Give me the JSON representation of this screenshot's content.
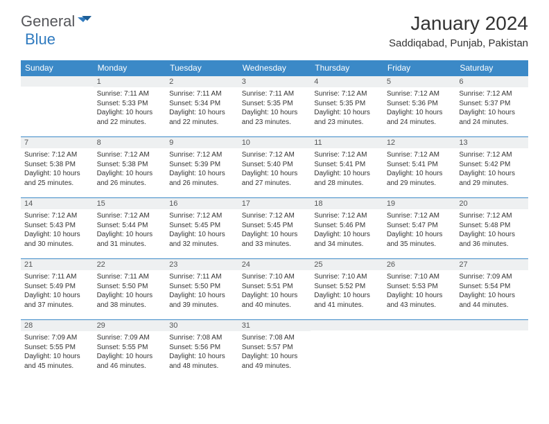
{
  "logo": {
    "text1": "General",
    "text2": "Blue"
  },
  "title": "January 2024",
  "location": "Saddiqabad, Punjab, Pakistan",
  "colors": {
    "header_bg": "#3b89c7",
    "header_text": "#ffffff",
    "daynum_bg": "#eef0f1",
    "daynum_text": "#545556",
    "border": "#3b89c7",
    "body_text": "#333333",
    "logo_gray": "#55565a",
    "logo_blue": "#2f7abf",
    "page_bg": "#ffffff"
  },
  "fonts": {
    "title_size": 28,
    "location_size": 15,
    "header_size": 12,
    "daynum_size": 11,
    "daytext_size": 10
  },
  "weekdays": [
    "Sunday",
    "Monday",
    "Tuesday",
    "Wednesday",
    "Thursday",
    "Friday",
    "Saturday"
  ],
  "weeks": [
    [
      {
        "n": "",
        "sr": "",
        "ss": "",
        "dl": ""
      },
      {
        "n": "1",
        "sr": "Sunrise: 7:11 AM",
        "ss": "Sunset: 5:33 PM",
        "dl": "Daylight: 10 hours and 22 minutes."
      },
      {
        "n": "2",
        "sr": "Sunrise: 7:11 AM",
        "ss": "Sunset: 5:34 PM",
        "dl": "Daylight: 10 hours and 22 minutes."
      },
      {
        "n": "3",
        "sr": "Sunrise: 7:11 AM",
        "ss": "Sunset: 5:35 PM",
        "dl": "Daylight: 10 hours and 23 minutes."
      },
      {
        "n": "4",
        "sr": "Sunrise: 7:12 AM",
        "ss": "Sunset: 5:35 PM",
        "dl": "Daylight: 10 hours and 23 minutes."
      },
      {
        "n": "5",
        "sr": "Sunrise: 7:12 AM",
        "ss": "Sunset: 5:36 PM",
        "dl": "Daylight: 10 hours and 24 minutes."
      },
      {
        "n": "6",
        "sr": "Sunrise: 7:12 AM",
        "ss": "Sunset: 5:37 PM",
        "dl": "Daylight: 10 hours and 24 minutes."
      }
    ],
    [
      {
        "n": "7",
        "sr": "Sunrise: 7:12 AM",
        "ss": "Sunset: 5:38 PM",
        "dl": "Daylight: 10 hours and 25 minutes."
      },
      {
        "n": "8",
        "sr": "Sunrise: 7:12 AM",
        "ss": "Sunset: 5:38 PM",
        "dl": "Daylight: 10 hours and 26 minutes."
      },
      {
        "n": "9",
        "sr": "Sunrise: 7:12 AM",
        "ss": "Sunset: 5:39 PM",
        "dl": "Daylight: 10 hours and 26 minutes."
      },
      {
        "n": "10",
        "sr": "Sunrise: 7:12 AM",
        "ss": "Sunset: 5:40 PM",
        "dl": "Daylight: 10 hours and 27 minutes."
      },
      {
        "n": "11",
        "sr": "Sunrise: 7:12 AM",
        "ss": "Sunset: 5:41 PM",
        "dl": "Daylight: 10 hours and 28 minutes."
      },
      {
        "n": "12",
        "sr": "Sunrise: 7:12 AM",
        "ss": "Sunset: 5:41 PM",
        "dl": "Daylight: 10 hours and 29 minutes."
      },
      {
        "n": "13",
        "sr": "Sunrise: 7:12 AM",
        "ss": "Sunset: 5:42 PM",
        "dl": "Daylight: 10 hours and 29 minutes."
      }
    ],
    [
      {
        "n": "14",
        "sr": "Sunrise: 7:12 AM",
        "ss": "Sunset: 5:43 PM",
        "dl": "Daylight: 10 hours and 30 minutes."
      },
      {
        "n": "15",
        "sr": "Sunrise: 7:12 AM",
        "ss": "Sunset: 5:44 PM",
        "dl": "Daylight: 10 hours and 31 minutes."
      },
      {
        "n": "16",
        "sr": "Sunrise: 7:12 AM",
        "ss": "Sunset: 5:45 PM",
        "dl": "Daylight: 10 hours and 32 minutes."
      },
      {
        "n": "17",
        "sr": "Sunrise: 7:12 AM",
        "ss": "Sunset: 5:45 PM",
        "dl": "Daylight: 10 hours and 33 minutes."
      },
      {
        "n": "18",
        "sr": "Sunrise: 7:12 AM",
        "ss": "Sunset: 5:46 PM",
        "dl": "Daylight: 10 hours and 34 minutes."
      },
      {
        "n": "19",
        "sr": "Sunrise: 7:12 AM",
        "ss": "Sunset: 5:47 PM",
        "dl": "Daylight: 10 hours and 35 minutes."
      },
      {
        "n": "20",
        "sr": "Sunrise: 7:12 AM",
        "ss": "Sunset: 5:48 PM",
        "dl": "Daylight: 10 hours and 36 minutes."
      }
    ],
    [
      {
        "n": "21",
        "sr": "Sunrise: 7:11 AM",
        "ss": "Sunset: 5:49 PM",
        "dl": "Daylight: 10 hours and 37 minutes."
      },
      {
        "n": "22",
        "sr": "Sunrise: 7:11 AM",
        "ss": "Sunset: 5:50 PM",
        "dl": "Daylight: 10 hours and 38 minutes."
      },
      {
        "n": "23",
        "sr": "Sunrise: 7:11 AM",
        "ss": "Sunset: 5:50 PM",
        "dl": "Daylight: 10 hours and 39 minutes."
      },
      {
        "n": "24",
        "sr": "Sunrise: 7:10 AM",
        "ss": "Sunset: 5:51 PM",
        "dl": "Daylight: 10 hours and 40 minutes."
      },
      {
        "n": "25",
        "sr": "Sunrise: 7:10 AM",
        "ss": "Sunset: 5:52 PM",
        "dl": "Daylight: 10 hours and 41 minutes."
      },
      {
        "n": "26",
        "sr": "Sunrise: 7:10 AM",
        "ss": "Sunset: 5:53 PM",
        "dl": "Daylight: 10 hours and 43 minutes."
      },
      {
        "n": "27",
        "sr": "Sunrise: 7:09 AM",
        "ss": "Sunset: 5:54 PM",
        "dl": "Daylight: 10 hours and 44 minutes."
      }
    ],
    [
      {
        "n": "28",
        "sr": "Sunrise: 7:09 AM",
        "ss": "Sunset: 5:55 PM",
        "dl": "Daylight: 10 hours and 45 minutes."
      },
      {
        "n": "29",
        "sr": "Sunrise: 7:09 AM",
        "ss": "Sunset: 5:55 PM",
        "dl": "Daylight: 10 hours and 46 minutes."
      },
      {
        "n": "30",
        "sr": "Sunrise: 7:08 AM",
        "ss": "Sunset: 5:56 PM",
        "dl": "Daylight: 10 hours and 48 minutes."
      },
      {
        "n": "31",
        "sr": "Sunrise: 7:08 AM",
        "ss": "Sunset: 5:57 PM",
        "dl": "Daylight: 10 hours and 49 minutes."
      },
      {
        "n": "",
        "sr": "",
        "ss": "",
        "dl": ""
      },
      {
        "n": "",
        "sr": "",
        "ss": "",
        "dl": ""
      },
      {
        "n": "",
        "sr": "",
        "ss": "",
        "dl": ""
      }
    ]
  ]
}
